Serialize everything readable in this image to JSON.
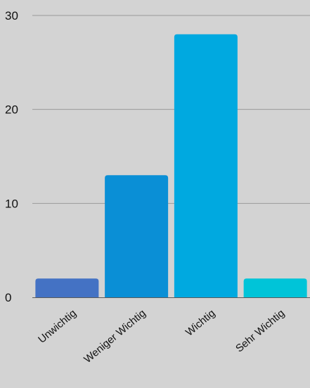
{
  "chart_data": {
    "type": "bar",
    "categories": [
      "Unwichtig",
      "Weniger Wichtig",
      "Wichtig",
      "Sehr Wichtig"
    ],
    "values": [
      2,
      13,
      28,
      2
    ],
    "colors": [
      "#4472c4",
      "#0a8fd6",
      "#00a9e0",
      "#00c4d8"
    ],
    "yticks": [
      0,
      10,
      20,
      30
    ],
    "ylim": [
      0,
      30
    ],
    "grid": true,
    "gridColor": "#9a9a9a",
    "title": "",
    "xlabel": "",
    "ylabel": ""
  }
}
